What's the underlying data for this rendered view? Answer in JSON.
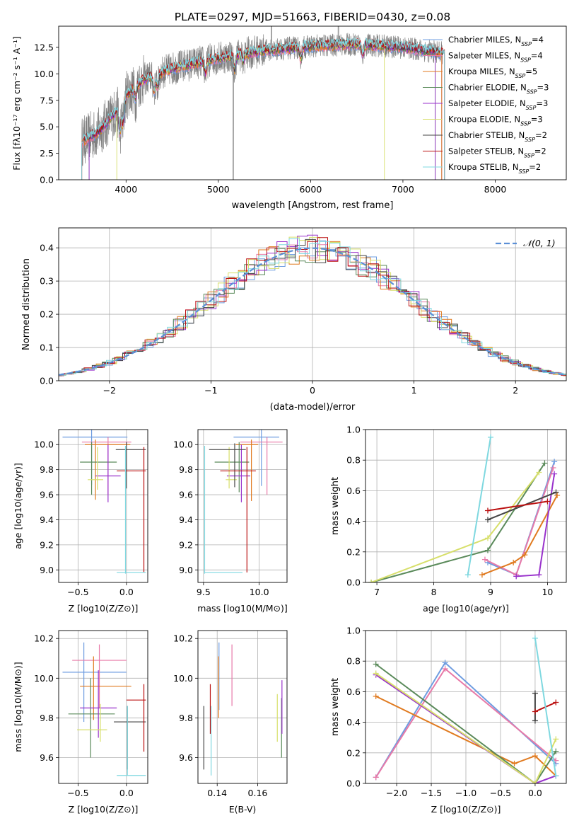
{
  "figure_title": "PLATE=0297, MJD=51663, FIBERID=0430, z=0.08",
  "colors": {
    "Chabrier MILES": "#6e9ce0",
    "Salpeter MILES": "#e87aa8",
    "Kroupa MILES": "#e07a1f",
    "Chabrier ELODIE": "#5a8a5a",
    "Salpeter ELODIE": "#9932cc",
    "Kroupa ELODIE": "#d7df6a",
    "Chabrier STELIB": "#444444",
    "Salpeter STELIB": "#bb1111",
    "Kroupa STELIB": "#7fd8e0",
    "data": "#808080",
    "normal": "#5b8fd6",
    "grid": "#b0b0b0"
  },
  "chart_data": [
    {
      "type": "line",
      "panel": "spectrum",
      "title": "PLATE=0297, MJD=51663, FIBERID=0430, z=0.08",
      "xlabel": "wavelength [Angstrom, rest frame]",
      "ylabel": "Flux [f_λ 10^-17 erg cm^-2 s^-1 A^-1]",
      "xlim": [
        3270,
        8770
      ],
      "ylim": [
        0,
        14.5
      ],
      "xticks": [
        4000,
        5000,
        6000,
        7000,
        8000
      ],
      "yticks": [
        0.0,
        2.5,
        5.0,
        7.5,
        10.0,
        12.5
      ],
      "grid": false,
      "legend": "upper-right",
      "legend_entries": [
        {
          "name": "Chabrier MILES",
          "main": "Chabrier MILES, N",
          "sub": "SSP",
          "tail": "=4"
        },
        {
          "name": "Salpeter MILES",
          "main": "Salpeter MILES, N",
          "sub": "SSP",
          "tail": "=4"
        },
        {
          "name": "Kroupa MILES",
          "main": "Kroupa MILES, N",
          "sub": "SSP",
          "tail": "=5"
        },
        {
          "name": "Chabrier ELODIE",
          "main": "Chabrier ELODIE, N",
          "sub": "SSP",
          "tail": "=3"
        },
        {
          "name": "Salpeter ELODIE",
          "main": "Salpeter ELODIE, N",
          "sub": "SSP",
          "tail": "=3"
        },
        {
          "name": "Kroupa ELODIE",
          "main": "Kroupa ELODIE, N",
          "sub": "SSP",
          "tail": "=3"
        },
        {
          "name": "Chabrier STELIB",
          "main": "Chabrier STELIB, N",
          "sub": "SSP",
          "tail": "=2"
        },
        {
          "name": "Salpeter STELIB",
          "main": "Salpeter STELIB, N",
          "sub": "SSP",
          "tail": "=2"
        },
        {
          "name": "Kroupa STELIB",
          "main": "Kroupa STELIB, N",
          "sub": "SSP",
          "tail": "=2"
        }
      ],
      "continuum_x": [
        3500,
        3700,
        3900,
        4000,
        4200,
        4500,
        5000,
        5500,
        6000,
        6500,
        7000,
        7400
      ],
      "continuum_y": [
        3.5,
        4.5,
        6.5,
        8.0,
        9.5,
        10.5,
        11.5,
        12.2,
        12.6,
        12.8,
        12.5,
        12.0
      ],
      "model_ranges": [
        [
          3520,
          7420
        ],
        [
          3520,
          7420
        ],
        [
          3520,
          7420
        ],
        [
          3600,
          7350
        ],
        [
          3600,
          7350
        ],
        [
          3900,
          6800
        ],
        [
          3520,
          7450
        ],
        [
          3520,
          7450
        ],
        [
          3520,
          7450
        ]
      ]
    },
    {
      "type": "bar",
      "panel": "residuals",
      "xlabel": "(data-model)/error",
      "ylabel": "Normed distribution",
      "xlim": [
        -2.5,
        2.5
      ],
      "ylim": [
        0,
        0.46
      ],
      "xticks": [
        -2,
        -1,
        0,
        1,
        2
      ],
      "xticklabels": [
        "−2",
        "−1",
        "0",
        "1",
        "2"
      ],
      "yticks": [
        0.0,
        0.1,
        0.2,
        0.3,
        0.4
      ],
      "grid": true,
      "legend": "upper-right",
      "normal_label": "N(0,1)",
      "bin_width": 0.1
    },
    {
      "type": "scatter",
      "panel": "age-vs-Z",
      "xlabel": "Z [log10(Z/Z⊙)]",
      "ylabel": "age [log10(age/yr)]",
      "xlim": [
        -0.7,
        0.22
      ],
      "ylim": [
        8.9,
        10.12
      ],
      "xticks": [
        -0.5,
        0.0
      ],
      "xticklabels": [
        "−0.5",
        "0.0"
      ],
      "yticks": [
        9.0,
        9.2,
        9.4,
        9.6,
        9.8,
        10.0
      ],
      "grid": true,
      "points": [
        {
          "name": "Chabrier MILES",
          "x": -0.36,
          "xlo": -0.66,
          "xhi": 0.01,
          "y": 10.06,
          "ylo": 9.68,
          "yhi": 10.12
        },
        {
          "name": "Salpeter MILES",
          "x": -0.19,
          "xlo": -0.46,
          "xhi": 0.05,
          "y": 10.02,
          "ylo": 9.6,
          "yhi": 10.06
        },
        {
          "name": "Kroupa MILES",
          "x": -0.32,
          "xlo": -0.43,
          "xhi": 0.04,
          "y": 10.0,
          "ylo": 9.56,
          "yhi": 10.04
        },
        {
          "name": "Chabrier ELODIE",
          "x": -0.36,
          "xlo": -0.48,
          "xhi": -0.1,
          "y": 9.86,
          "ylo": 9.6,
          "yhi": 10.02
        },
        {
          "name": "Salpeter ELODIE",
          "x": -0.19,
          "xlo": -0.32,
          "xhi": -0.06,
          "y": 9.75,
          "ylo": 9.54,
          "yhi": 10.0
        },
        {
          "name": "Kroupa ELODIE",
          "x": -0.3,
          "xlo": -0.4,
          "xhi": -0.24,
          "y": 9.72,
          "ylo": 9.64,
          "yhi": 9.98
        },
        {
          "name": "Chabrier STELIB",
          "x": 0.0,
          "xlo": -0.11,
          "xhi": 0.2,
          "y": 9.96,
          "ylo": 9.65,
          "yhi": 10.02
        },
        {
          "name": "Salpeter STELIB",
          "x": 0.18,
          "xlo": -0.1,
          "xhi": 0.2,
          "y": 9.79,
          "ylo": 8.98,
          "yhi": 9.98
        },
        {
          "name": "Kroupa STELIB",
          "x": -0.01,
          "xlo": -0.1,
          "xhi": 0.2,
          "y": 8.98,
          "ylo": 8.97,
          "yhi": 9.99
        }
      ]
    },
    {
      "type": "scatter",
      "panel": "age-vs-mass",
      "xlabel": "mass [log10(M/M⊙)]",
      "xlim": [
        9.45,
        10.25
      ],
      "ylim": [
        8.9,
        10.12
      ],
      "xticks": [
        9.5,
        10.0
      ],
      "yticks": [
        9.0,
        9.2,
        9.4,
        9.6,
        9.8,
        10.0
      ],
      "grid": true,
      "points": [
        {
          "name": "Chabrier MILES",
          "x": 10.02,
          "xlo": 9.77,
          "xhi": 10.18,
          "y": 10.06,
          "ylo": 9.67,
          "yhi": 10.12
        },
        {
          "name": "Salpeter MILES",
          "x": 10.07,
          "xlo": 9.83,
          "xhi": 10.21,
          "y": 10.02,
          "ylo": 9.6,
          "yhi": 10.06
        },
        {
          "name": "Kroupa MILES",
          "x": 9.93,
          "xlo": 9.79,
          "xhi": 9.99,
          "y": 10.0,
          "ylo": 9.55,
          "yhi": 10.04
        },
        {
          "name": "Chabrier ELODIE",
          "x": 9.82,
          "xlo": 9.6,
          "xhi": 9.91,
          "y": 9.86,
          "ylo": 9.62,
          "yhi": 10.02
        },
        {
          "name": "Salpeter ELODIE",
          "x": 9.84,
          "xlo": 9.71,
          "xhi": 9.92,
          "y": 9.75,
          "ylo": 9.54,
          "yhi": 10.0
        },
        {
          "name": "Kroupa ELODIE",
          "x": 9.73,
          "xlo": 9.7,
          "xhi": 9.8,
          "y": 9.72,
          "ylo": 9.65,
          "yhi": 9.98
        },
        {
          "name": "Chabrier STELIB",
          "x": 9.78,
          "xlo": 9.55,
          "xhi": 9.88,
          "y": 9.96,
          "ylo": 9.66,
          "yhi": 10.01
        },
        {
          "name": "Salpeter STELIB",
          "x": 9.89,
          "xlo": 9.65,
          "xhi": 9.97,
          "y": 9.79,
          "ylo": 8.98,
          "yhi": 9.98
        },
        {
          "name": "Kroupa STELIB",
          "x": 9.51,
          "xlo": 9.51,
          "xhi": 9.85,
          "y": 8.98,
          "ylo": 8.97,
          "yhi": 9.99
        }
      ]
    },
    {
      "type": "line",
      "panel": "weight-vs-age",
      "xlabel": "age [log10(age/yr)]",
      "ylabel": "mass weight",
      "xlim": [
        6.8,
        10.33
      ],
      "ylim": [
        0,
        1.0
      ],
      "xticks": [
        7,
        8,
        9,
        10
      ],
      "yticks": [
        0.0,
        0.2,
        0.4,
        0.6,
        0.8,
        1.0
      ],
      "grid": true,
      "series": [
        {
          "name": "Chabrier MILES",
          "x": [
            8.95,
            9.45,
            10.12
          ],
          "y": [
            0.13,
            0.05,
            0.79
          ]
        },
        {
          "name": "Salpeter MILES",
          "x": [
            8.9,
            9.45,
            10.1
          ],
          "y": [
            0.15,
            0.05,
            0.75
          ]
        },
        {
          "name": "Kroupa MILES",
          "x": [
            8.85,
            9.4,
            9.6,
            10.17
          ],
          "y": [
            0.05,
            0.13,
            0.18,
            0.57
          ]
        },
        {
          "name": "Chabrier ELODIE",
          "x": [
            6.9,
            8.95,
            9.95
          ],
          "y": [
            0.0,
            0.21,
            0.78
          ]
        },
        {
          "name": "Salpeter ELODIE",
          "x": [
            9.45,
            9.85,
            10.12
          ],
          "y": [
            0.04,
            0.05,
            0.71
          ]
        },
        {
          "name": "Kroupa ELODIE",
          "x": [
            6.9,
            8.95,
            9.85
          ],
          "y": [
            0.0,
            0.29,
            0.72
          ]
        },
        {
          "name": "Chabrier STELIB",
          "x": [
            8.95,
            10.15
          ],
          "y": [
            0.41,
            0.59
          ]
        },
        {
          "name": "Salpeter STELIB",
          "x": [
            8.95,
            10.0
          ],
          "y": [
            0.47,
            0.53
          ]
        },
        {
          "name": "Kroupa STELIB",
          "x": [
            8.6,
            9.0
          ],
          "y": [
            0.05,
            0.95
          ]
        }
      ]
    },
    {
      "type": "scatter",
      "panel": "mass-vs-Z",
      "xlabel": "Z [log10(Z/Z⊙)]",
      "ylabel": "mass [log10(M/M⊙)]",
      "xlim": [
        -0.7,
        0.22
      ],
      "ylim": [
        9.47,
        10.24
      ],
      "xticks": [
        -0.5,
        0.0
      ],
      "xticklabels": [
        "−0.5",
        "0.0"
      ],
      "yticks": [
        9.6,
        9.8,
        10.0,
        10.2
      ],
      "grid": true,
      "points": [
        {
          "name": "Chabrier MILES",
          "x": -0.44,
          "xlo": -0.66,
          "xhi": 0.0,
          "y": 10.03,
          "ylo": 9.78,
          "yhi": 10.18
        },
        {
          "name": "Salpeter MILES",
          "x": -0.28,
          "xlo": -0.56,
          "xhi": 0.0,
          "y": 10.09,
          "ylo": 9.85,
          "yhi": 10.17
        },
        {
          "name": "Kroupa MILES",
          "x": -0.34,
          "xlo": -0.48,
          "xhi": 0.05,
          "y": 9.96,
          "ylo": 9.79,
          "yhi": 10.11
        },
        {
          "name": "Chabrier ELODIE",
          "x": -0.37,
          "xlo": -0.6,
          "xhi": -0.12,
          "y": 9.82,
          "ylo": 9.6,
          "yhi": 10.0
        },
        {
          "name": "Salpeter ELODIE",
          "x": -0.29,
          "xlo": -0.48,
          "xhi": -0.1,
          "y": 9.85,
          "ylo": 9.7,
          "yhi": 10.04
        },
        {
          "name": "Kroupa ELODIE",
          "x": -0.27,
          "xlo": -0.51,
          "xhi": -0.2,
          "y": 9.74,
          "ylo": 9.68,
          "yhi": 9.87
        },
        {
          "name": "Chabrier STELIB",
          "x": 0.01,
          "xlo": -0.13,
          "xhi": 0.2,
          "y": 9.78,
          "ylo": 9.54,
          "yhi": 9.86
        },
        {
          "name": "Salpeter STELIB",
          "x": 0.18,
          "xlo": 0.0,
          "xhi": 0.2,
          "y": 9.89,
          "ylo": 9.63,
          "yhi": 9.97
        },
        {
          "name": "Kroupa STELIB",
          "x": 0.01,
          "xlo": -0.1,
          "xhi": 0.2,
          "y": 9.51,
          "ylo": 9.51,
          "yhi": 9.86
        }
      ]
    },
    {
      "type": "scatter",
      "panel": "mass-vs-EBV",
      "xlabel": "E(B-V)",
      "xlim": [
        0.1305,
        0.1745
      ],
      "ylim": [
        9.47,
        10.24
      ],
      "xticks": [
        0.14,
        0.16
      ],
      "yticks": [
        9.6,
        9.8,
        10.0,
        10.2
      ],
      "grid": true,
      "points": [
        {
          "name": "Chabrier MILES",
          "x": 0.1409,
          "ylo": 9.84,
          "yhi": 10.18
        },
        {
          "name": "Salpeter MILES",
          "x": 0.1473,
          "ylo": 9.86,
          "yhi": 10.17
        },
        {
          "name": "Kroupa MILES",
          "x": 0.1407,
          "ylo": 9.8,
          "yhi": 10.11
        },
        {
          "name": "Chabrier ELODIE",
          "x": 0.1718,
          "ylo": 9.6,
          "yhi": 9.9
        },
        {
          "name": "Salpeter ELODIE",
          "x": 0.172,
          "ylo": 9.72,
          "yhi": 9.99
        },
        {
          "name": "Kroupa ELODIE",
          "x": 0.1697,
          "ylo": 9.68,
          "yhi": 9.92
        },
        {
          "name": "Chabrier STELIB",
          "x": 0.1334,
          "ylo": 9.54,
          "yhi": 9.86
        },
        {
          "name": "Salpeter STELIB",
          "x": 0.1366,
          "ylo": 9.72,
          "yhi": 9.97
        },
        {
          "name": "Kroupa STELIB",
          "x": 0.137,
          "ylo": 9.51,
          "yhi": 9.86
        }
      ]
    },
    {
      "type": "line",
      "panel": "weight-vs-Z",
      "xlabel": "Z [log10(Z/Z⊙)]",
      "ylabel": "mass weight",
      "xlim": [
        -2.45,
        0.45
      ],
      "ylim": [
        0,
        1.0
      ],
      "xticks": [
        -2.0,
        -1.5,
        -1.0,
        -0.5,
        0.0
      ],
      "xticklabels": [
        "−2.0",
        "−1.5",
        "−1.0",
        "−0.5",
        "0.0"
      ],
      "yticks": [
        0.0,
        0.2,
        0.4,
        0.6,
        0.8,
        1.0
      ],
      "grid": true,
      "series": [
        {
          "name": "Chabrier MILES",
          "x": [
            -2.3,
            -1.3,
            0.3
          ],
          "y": [
            0.04,
            0.79,
            0.13
          ]
        },
        {
          "name": "Salpeter MILES",
          "x": [
            -2.3,
            -1.3,
            0.3
          ],
          "y": [
            0.04,
            0.75,
            0.15
          ]
        },
        {
          "name": "Kroupa MILES",
          "x": [
            -2.3,
            -0.3,
            0.0,
            0.3
          ],
          "y": [
            0.57,
            0.13,
            0.18,
            0.05
          ]
        },
        {
          "name": "Chabrier ELODIE",
          "x": [
            -2.3,
            0.0,
            0.3
          ],
          "y": [
            0.78,
            0.0,
            0.21
          ]
        },
        {
          "name": "Salpeter ELODIE",
          "x": [
            -2.3,
            0.0,
            0.3
          ],
          "y": [
            0.71,
            0.0,
            0.05
          ]
        },
        {
          "name": "Kroupa ELODIE",
          "x": [
            -2.3,
            0.0,
            0.3
          ],
          "y": [
            0.72,
            0.0,
            0.29
          ]
        },
        {
          "name": "Chabrier STELIB",
          "x": [
            0.0,
            0.0
          ],
          "y": [
            0.41,
            0.59
          ]
        },
        {
          "name": "Salpeter STELIB",
          "x": [
            0.0,
            0.3
          ],
          "y": [
            0.47,
            0.53
          ]
        },
        {
          "name": "Kroupa STELIB",
          "x": [
            0.0,
            0.3
          ],
          "y": [
            0.95,
            0.05
          ]
        }
      ]
    }
  ]
}
